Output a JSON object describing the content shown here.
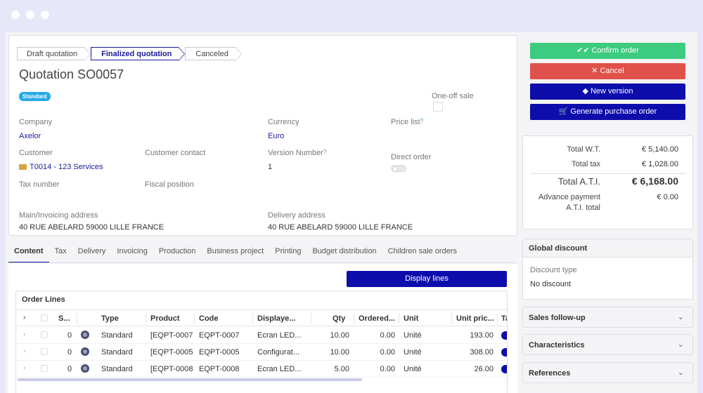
{
  "steps": [
    "Draft quotation",
    "Finalized quotation",
    "Canceled"
  ],
  "title": "Quotation SO0057",
  "badge": "Standard",
  "fields": {
    "one_off_label": "One-off sale",
    "company_label": "Company",
    "company_value": "Axelor",
    "currency_label": "Currency",
    "currency_value": "Euro",
    "price_list_label": "Price list",
    "customer_label": "Customer",
    "customer_value": "T0014 - 123 Services",
    "customer_contact_label": "Customer contact",
    "version_label": "Version Number",
    "version_value": "1",
    "direct_order_label": "Direct order",
    "tax_number_label": "Tax number",
    "fiscal_position_label": "Fiscal position",
    "main_address_label": "Main/Invoicing address",
    "main_address_value": "40 RUE ABELARD 59000 LILLE FRANCE",
    "delivery_address_label": "Delivery address",
    "delivery_address_value": "40 RUE ABELARD 59000 LILLE FRANCE",
    "required_mark": "?"
  },
  "tabs": [
    "Content",
    "Tax",
    "Delivery",
    "Invoicing",
    "Production",
    "Business project",
    "Printing",
    "Budget distribution",
    "Children sale orders"
  ],
  "display_lines_label": "Display lines",
  "order_lines": {
    "title": "Order Lines",
    "headers": [
      "S...",
      "Type",
      "Product",
      "Code",
      "Displaye...",
      "Qty",
      "Ordered...",
      "Unit",
      "Unit pric...",
      "Ta"
    ],
    "rows": [
      {
        "seq": "0",
        "type": "Standard",
        "product": "[EQPT-0007",
        "code": "EQPT-0007",
        "display": "Ecran LED...",
        "qty": "10.00",
        "ordered": "0.00",
        "unit": "Unité",
        "price": "193.00"
      },
      {
        "seq": "0",
        "type": "Standard",
        "product": "[EQPT-0005",
        "code": "EQPT-0005",
        "display": "Configurat...",
        "qty": "10.00",
        "ordered": "0.00",
        "unit": "Unité",
        "price": "308.00"
      },
      {
        "seq": "0",
        "type": "Standard",
        "product": "[EQPT-0008",
        "code": "EQPT-0008",
        "display": "Ecran LED...",
        "qty": "5.00",
        "ordered": "0.00",
        "unit": "Unité",
        "price": "26.00"
      }
    ]
  },
  "actions": {
    "confirm": "Confirm order",
    "cancel": "Cancel",
    "new_version": "New version",
    "generate_po": "Generate purchase order",
    "confirm_color": "#3dcb7f",
    "cancel_color": "#e0514b",
    "primary_color": "#0d0dab"
  },
  "totals": {
    "wt_label": "Total W.T.",
    "wt_value": "€ 5,140.00",
    "tax_label": "Total tax",
    "tax_value": "€ 1,028.00",
    "ati_label": "Total A.T.I.",
    "ati_value": "€ 6,168.00",
    "advance_label_1": "Advance payment",
    "advance_label_2": "A.T.I. total",
    "advance_value": "€ 0.00"
  },
  "global_discount": {
    "title": "Global discount",
    "type_label": "Discount type",
    "type_value": "No discount"
  },
  "panels": [
    "Sales follow-up",
    "Characteristics",
    "References"
  ]
}
